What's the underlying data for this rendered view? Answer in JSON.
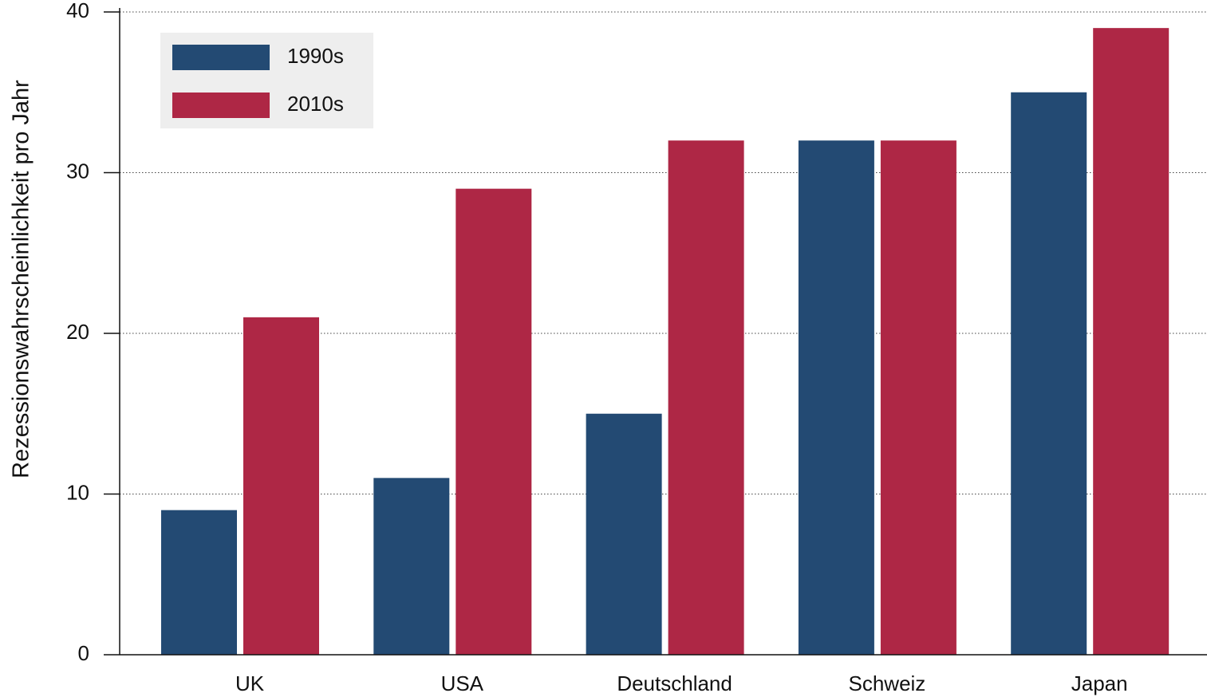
{
  "chart_data": {
    "type": "bar",
    "y_label": "Rezessionswahrscheinlichkeit pro Jahr",
    "categories": [
      "UK",
      "USA",
      "Deutschland",
      "Schweiz",
      "Japan"
    ],
    "series": [
      {
        "name": "1990s",
        "color": "#234a73",
        "values": [
          9,
          11,
          15,
          32,
          35
        ]
      },
      {
        "name": "2010s",
        "color": "#ae2745",
        "values": [
          21,
          29,
          32,
          32,
          39
        ]
      }
    ],
    "ylim": [
      0,
      40
    ],
    "yticks": [
      0,
      10,
      20,
      30,
      40
    ],
    "grid": true,
    "legend": "upper left"
  }
}
